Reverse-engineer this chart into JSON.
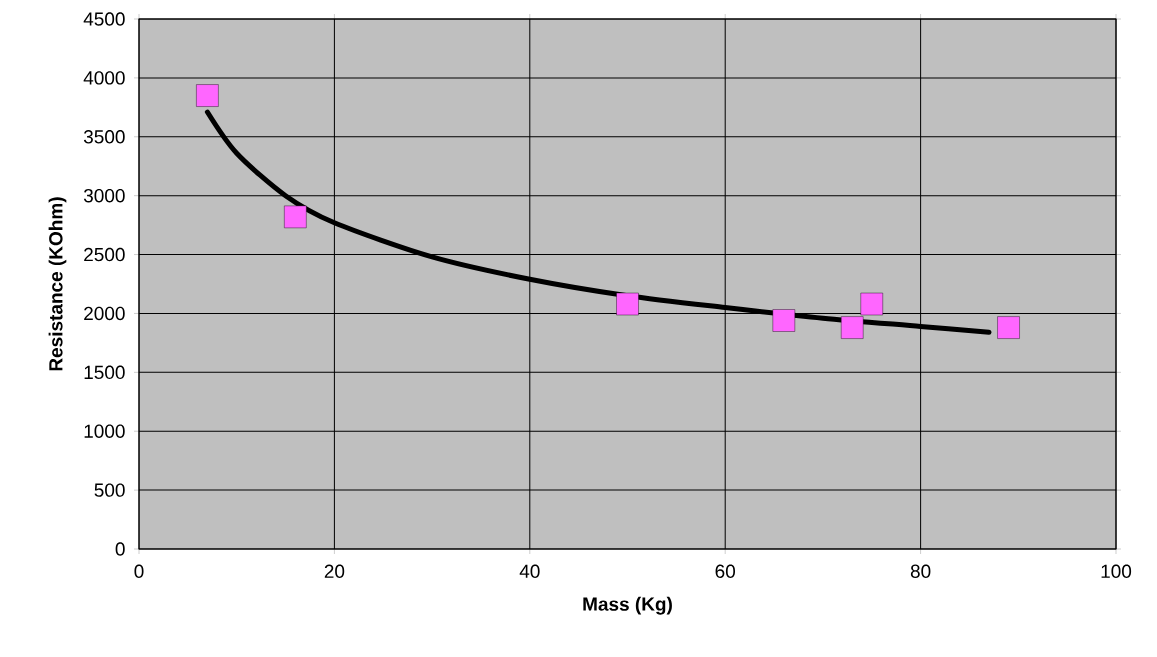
{
  "chart_data": {
    "type": "scatter",
    "xlabel": "Mass (Kg)",
    "ylabel": "Resistance (KOhm)",
    "xlim": [
      0,
      100
    ],
    "xticks": [
      0,
      20,
      40,
      60,
      80,
      100
    ],
    "ylim": [
      0,
      4500
    ],
    "yticks": [
      0,
      500,
      1000,
      1500,
      2000,
      2500,
      3000,
      3500,
      4000,
      4500
    ],
    "grid": true,
    "series": [
      {
        "type": "scatter",
        "color": "#ff66ff",
        "marker": "square",
        "x": [
          7,
          16,
          50,
          66,
          73,
          75,
          89
        ],
        "values": [
          3850,
          2820,
          2080,
          1940,
          1880,
          2080,
          1880
        ]
      },
      {
        "type": "line",
        "color": "#000000",
        "marker": "none",
        "line_style": "solid",
        "x": [
          7,
          10,
          15,
          20,
          30,
          40,
          50,
          60,
          70,
          80,
          87
        ],
        "values": [
          3710,
          3360,
          3000,
          2770,
          2480,
          2290,
          2150,
          2050,
          1960,
          1890,
          1840
        ]
      }
    ]
  }
}
